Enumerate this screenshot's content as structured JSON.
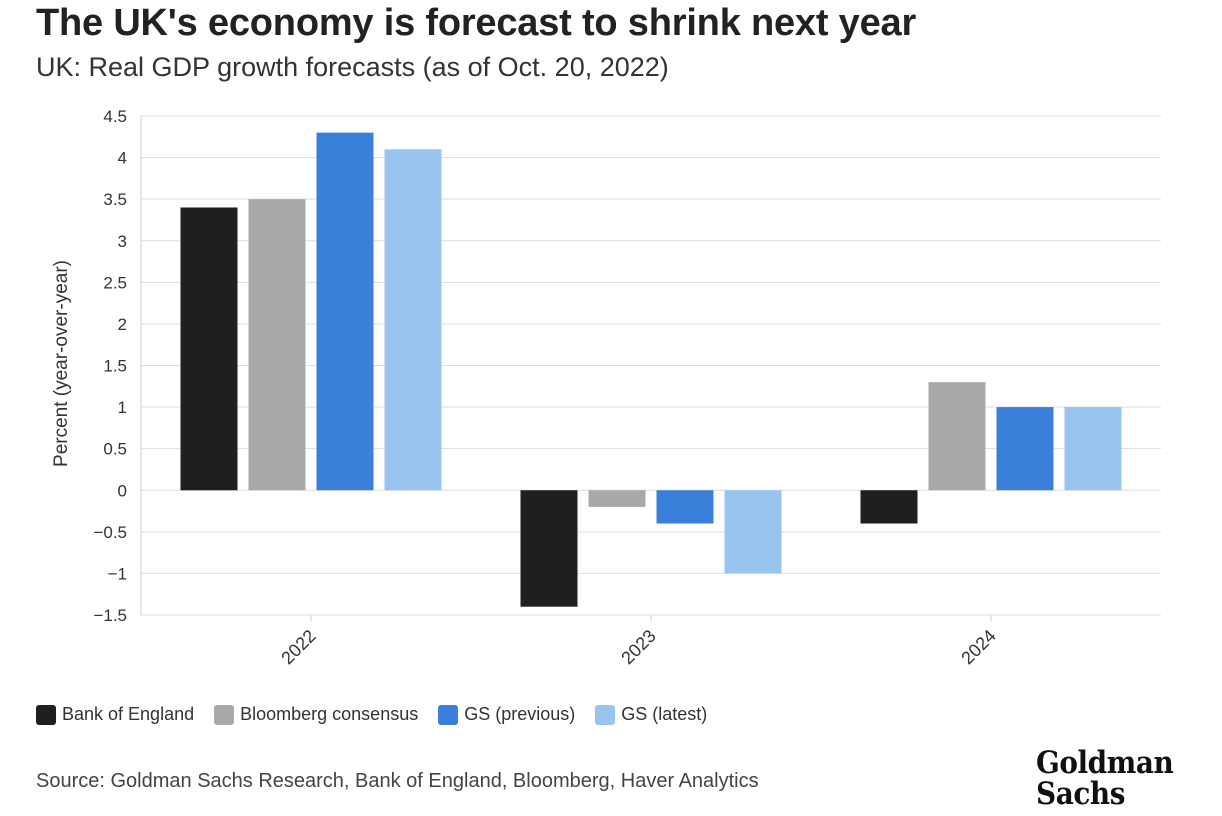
{
  "header": {
    "title": "The UK's economy is forecast to shrink next year",
    "subtitle": "UK: Real GDP growth forecasts (as of Oct. 20, 2022)"
  },
  "chart_data": {
    "type": "bar",
    "categories": [
      "2022",
      "2023",
      "2024"
    ],
    "series": [
      {
        "name": "Bank of England",
        "color": "#1f1f1f",
        "values": [
          3.4,
          -1.4,
          -0.4
        ]
      },
      {
        "name": "Bloomberg consensus",
        "color": "#a9a9a9",
        "values": [
          3.5,
          -0.2,
          1.3
        ]
      },
      {
        "name": "GS (previous)",
        "color": "#3a7fd9",
        "values": [
          4.3,
          -0.4,
          1.0
        ]
      },
      {
        "name": "GS (latest)",
        "color": "#99c4f0",
        "values": [
          4.1,
          -1.0,
          1.0
        ]
      }
    ],
    "ylabel": "Percent (year-over-year)",
    "xlabel": "",
    "ylim": [
      -1.5,
      4.5
    ],
    "yticks": [
      "4.5",
      "4",
      "3.5",
      "3",
      "2.5",
      "2",
      "1.5",
      "1",
      "0.5",
      "0",
      "-0.5",
      "-1",
      "-1.5"
    ],
    "grid": true,
    "legend": "bottom-left"
  },
  "footer": {
    "source": "Source: Goldman Sachs Research, Bank of England, Bloomberg, Haver Analytics",
    "logo_line1": "Goldman",
    "logo_line2": "Sachs"
  }
}
